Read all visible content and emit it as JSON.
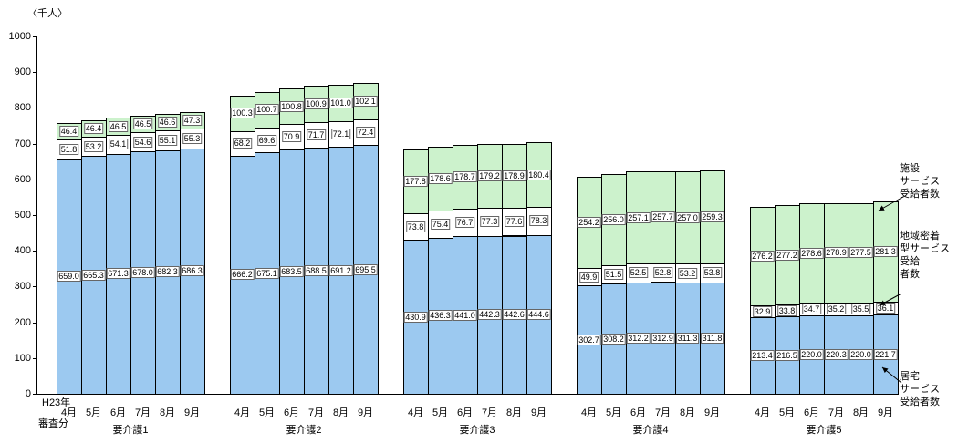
{
  "chart_data": {
    "type": "bar",
    "stacked": true,
    "title": "",
    "xlabel": "",
    "ylabel": "〈千人〉",
    "unit_label": "〈千人〉",
    "ylim": [
      0,
      1000
    ],
    "yticks": [
      0,
      100,
      200,
      300,
      400,
      500,
      600,
      700,
      800,
      900,
      1000
    ],
    "categories_months": [
      "4月",
      "5月",
      "6月",
      "7月",
      "8月",
      "9月"
    ],
    "series_order": [
      "home",
      "community",
      "facility"
    ],
    "series_meta": {
      "home": {
        "name": "居宅サービス受給者数",
        "color": "#9CC9F0"
      },
      "community": {
        "name": "地域密着型サービス受給者数",
        "color": "#FFFFFF"
      },
      "facility": {
        "name": "施設サービス受給者数",
        "color": "#CCF2CC"
      }
    },
    "groups": [
      {
        "label": "要介護1",
        "home": [
          659.0,
          665.3,
          671.3,
          678.0,
          682.3,
          686.3
        ],
        "community": [
          51.8,
          53.2,
          54.1,
          54.6,
          55.1,
          55.3
        ],
        "facility": [
          46.4,
          46.4,
          46.5,
          46.5,
          46.6,
          47.3
        ]
      },
      {
        "label": "要介護2",
        "home": [
          666.2,
          675.1,
          683.5,
          688.5,
          691.2,
          695.5
        ],
        "community": [
          68.2,
          69.6,
          70.9,
          71.7,
          72.1,
          72.4
        ],
        "facility": [
          100.3,
          100.7,
          100.8,
          100.9,
          101.0,
          102.1
        ]
      },
      {
        "label": "要介護3",
        "home": [
          430.9,
          436.3,
          441.0,
          442.3,
          442.6,
          444.6
        ],
        "community": [
          73.8,
          75.4,
          76.7,
          77.3,
          77.6,
          78.3
        ],
        "facility": [
          177.8,
          178.6,
          178.7,
          179.2,
          178.9,
          180.4
        ]
      },
      {
        "label": "要介護4",
        "home": [
          302.7,
          308.2,
          312.2,
          312.9,
          311.3,
          311.8
        ],
        "community": [
          49.9,
          51.5,
          52.5,
          52.8,
          53.2,
          53.8
        ],
        "facility": [
          254.2,
          256.0,
          257.1,
          257.7,
          257.0,
          259.3
        ]
      },
      {
        "label": "要介護5",
        "home": [
          213.4,
          216.5,
          220.0,
          220.3,
          220.0,
          221.7
        ],
        "community": [
          32.9,
          33.8,
          34.7,
          35.2,
          35.5,
          36.1
        ],
        "facility": [
          276.2,
          277.2,
          278.6,
          278.9,
          277.5,
          281.3
        ]
      }
    ]
  },
  "axis_notes": {
    "year": "H23年",
    "note": "審査分"
  },
  "right_labels": {
    "facility": "施設\nサービス\n受給者数",
    "community": "地域密着\n型サービス\n受給\n者数",
    "home": "居宅\nサービス\n受給者数"
  }
}
